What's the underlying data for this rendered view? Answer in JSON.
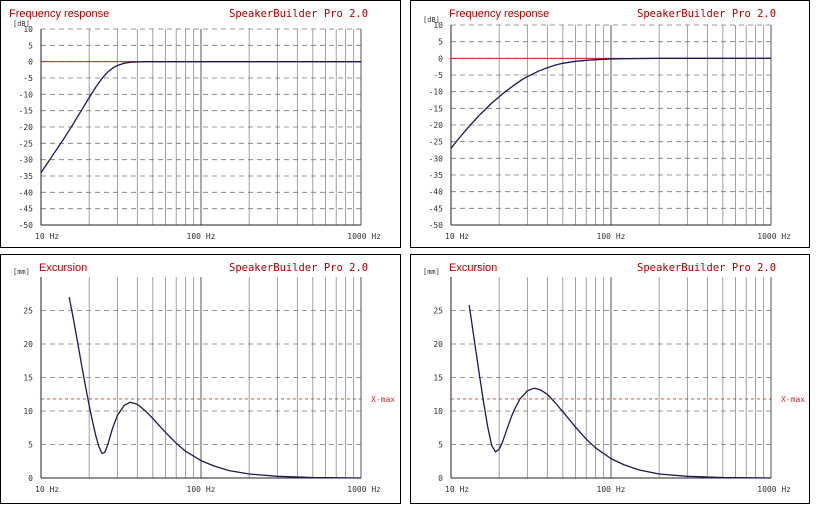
{
  "brand": "SpeakerBuilder Pro 2.0",
  "chart_data": [
    {
      "type": "line",
      "title": "Frequency response",
      "ylabel": "[dB]",
      "x_scale": "log",
      "xlim": [
        10,
        1000
      ],
      "ylim": [
        -50,
        10
      ],
      "y_ticks": [
        10,
        5,
        0,
        -5,
        -10,
        -15,
        -20,
        -25,
        -30,
        -35,
        -40,
        -45,
        -50
      ],
      "x_tick_labels": [
        {
          "x": 10,
          "label": "10 Hz"
        },
        {
          "x": 100,
          "label": "100 Hz"
        },
        {
          "x": 1000,
          "label": "1000 Hz"
        }
      ],
      "grid": true,
      "reference_line": {
        "y": 0,
        "x_end": 1000,
        "color": "#cc2222"
      },
      "series": [
        {
          "color": "#1a1a5a",
          "x": [
            10,
            11,
            12,
            13,
            14,
            15,
            16,
            18,
            20,
            22,
            24,
            26,
            28,
            30,
            33,
            36,
            40,
            45,
            50,
            60,
            80,
            100,
            200,
            500,
            1000
          ],
          "y": [
            -34,
            -31,
            -28.2,
            -25.7,
            -23.3,
            -21,
            -18.8,
            -14.7,
            -11,
            -7.8,
            -5.2,
            -3.3,
            -2,
            -1.2,
            -0.5,
            -0.2,
            -0.1,
            0,
            0,
            0,
            0,
            0,
            0,
            0,
            0
          ]
        }
      ]
    },
    {
      "type": "line",
      "title": "Frequency response",
      "ylabel": "[dB]",
      "x_scale": "log",
      "xlim": [
        10,
        1000
      ],
      "ylim": [
        -50,
        10
      ],
      "y_ticks": [
        10,
        5,
        0,
        -5,
        -10,
        -15,
        -20,
        -25,
        -30,
        -35,
        -40,
        -45,
        -50
      ],
      "x_tick_labels": [
        {
          "x": 10,
          "label": "10 Hz"
        },
        {
          "x": 100,
          "label": "100 Hz"
        },
        {
          "x": 1000,
          "label": "1000 Hz"
        }
      ],
      "grid": true,
      "reference_line": {
        "y": 0,
        "x_end": 120,
        "color": "#cc2222"
      },
      "series": [
        {
          "color": "#1a1a5a",
          "x": [
            10,
            11,
            12,
            13,
            14,
            15,
            16,
            18,
            20,
            22,
            25,
            28,
            30,
            35,
            40,
            45,
            50,
            60,
            70,
            80,
            100,
            120,
            200,
            500,
            1000
          ],
          "y": [
            -27,
            -24.5,
            -22.3,
            -20.4,
            -18.7,
            -17.1,
            -15.8,
            -13.4,
            -11.5,
            -9.9,
            -7.9,
            -6.3,
            -5.5,
            -3.9,
            -2.8,
            -2,
            -1.5,
            -0.9,
            -0.6,
            -0.4,
            -0.2,
            -0.1,
            0,
            0,
            0
          ]
        }
      ]
    },
    {
      "type": "line",
      "title": "Excursion",
      "ylabel": "[mm]",
      "x_scale": "log",
      "xlim": [
        10,
        1000
      ],
      "ylim": [
        0,
        30
      ],
      "y_ticks": [
        0,
        5,
        10,
        15,
        20,
        25
      ],
      "x_tick_labels": [
        {
          "x": 10,
          "label": "10 Hz"
        },
        {
          "x": 100,
          "label": "100 Hz"
        },
        {
          "x": 1000,
          "label": "1000 Hz"
        }
      ],
      "grid": true,
      "xmax_line": {
        "y": 11.8,
        "label": "X-max",
        "color": "#cc3333"
      },
      "series": [
        {
          "color": "#1a1a5a",
          "x": [
            15,
            16,
            17,
            18,
            19,
            20,
            21,
            22,
            23,
            24,
            25,
            26,
            27,
            28,
            30,
            33,
            36,
            40,
            45,
            50,
            60,
            70,
            80,
            100,
            120,
            150,
            200,
            300,
            500,
            1000
          ],
          "y": [
            27,
            23.5,
            20,
            16.7,
            13.6,
            10.8,
            8.4,
            6.3,
            4.7,
            3.7,
            3.8,
            4.8,
            6.1,
            7.4,
            9.3,
            10.8,
            11.3,
            11,
            10,
            8.9,
            6.8,
            5.2,
            4,
            2.6,
            1.8,
            1.1,
            0.6,
            0.25,
            0.08,
            0
          ]
        }
      ]
    },
    {
      "type": "line",
      "title": "Excursion",
      "ylabel": "[mm]",
      "x_scale": "log",
      "xlim": [
        10,
        1000
      ],
      "ylim": [
        0,
        30
      ],
      "y_ticks": [
        0,
        5,
        10,
        15,
        20,
        25
      ],
      "x_tick_labels": [
        {
          "x": 10,
          "label": "10 Hz"
        },
        {
          "x": 100,
          "label": "100 Hz"
        },
        {
          "x": 1000,
          "label": "1000 Hz"
        }
      ],
      "grid": true,
      "xmax_line": {
        "y": 11.8,
        "label": "X-max",
        "color": "#cc3333"
      },
      "series": [
        {
          "color": "#1a1a5a",
          "x": [
            13,
            14,
            15,
            16,
            17,
            18,
            19,
            20,
            21,
            22,
            23,
            24,
            25,
            27,
            30,
            33,
            36,
            40,
            45,
            50,
            60,
            70,
            80,
            100,
            120,
            150,
            200,
            300,
            500,
            1000
          ],
          "y": [
            25.8,
            20.5,
            15.6,
            11.2,
            7.5,
            4.8,
            3.9,
            4.3,
            5.4,
            6.8,
            8.1,
            9.3,
            10.3,
            11.8,
            13,
            13.4,
            13.2,
            12.5,
            11.2,
            9.9,
            7.6,
            5.8,
            4.5,
            2.9,
            2,
            1.2,
            0.6,
            0.25,
            0.08,
            0
          ]
        }
      ]
    }
  ]
}
